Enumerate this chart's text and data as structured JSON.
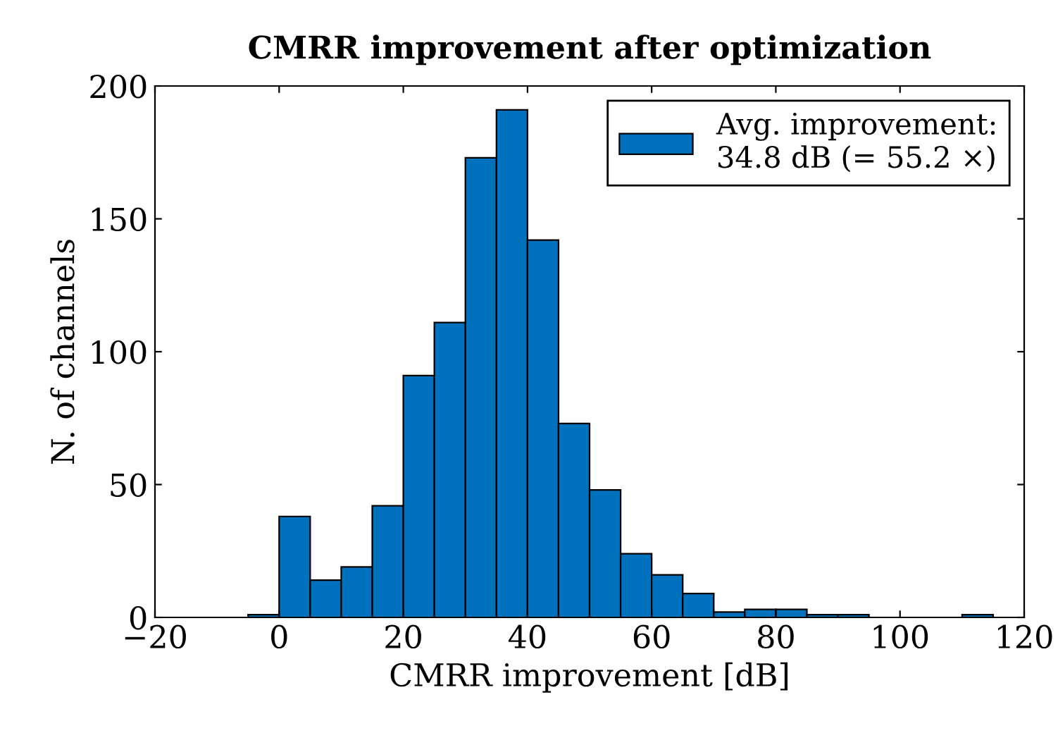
{
  "chart_data": {
    "type": "histogram",
    "title": "CMRR improvement after optimization",
    "xlabel": "CMRR improvement [dB]",
    "ylabel": "N. of channels",
    "bins": [
      -5,
      0,
      5,
      10,
      15,
      20,
      25,
      30,
      35,
      40,
      45,
      50,
      55,
      60,
      65,
      70,
      75,
      80,
      85,
      90,
      95,
      100,
      105,
      110,
      115
    ],
    "series": [
      {
        "name": "Avg. improvement:\n34.8 dB (= 55.2 ×)",
        "color": "#0072bd",
        "values": [
          1,
          38,
          14,
          19,
          42,
          91,
          111,
          173,
          191,
          142,
          73,
          48,
          24,
          16,
          9,
          2,
          3,
          3,
          1,
          1,
          0,
          0,
          0,
          1
        ]
      }
    ],
    "xlim": [
      -20,
      120
    ],
    "xticks": [
      {
        "value": -20,
        "label": "−20"
      },
      0,
      20,
      40,
      60,
      80,
      100,
      120
    ],
    "ylim": [
      0,
      200
    ],
    "yticks": [
      0,
      50,
      100,
      150,
      200
    ],
    "grid": false,
    "legend": "top right"
  }
}
